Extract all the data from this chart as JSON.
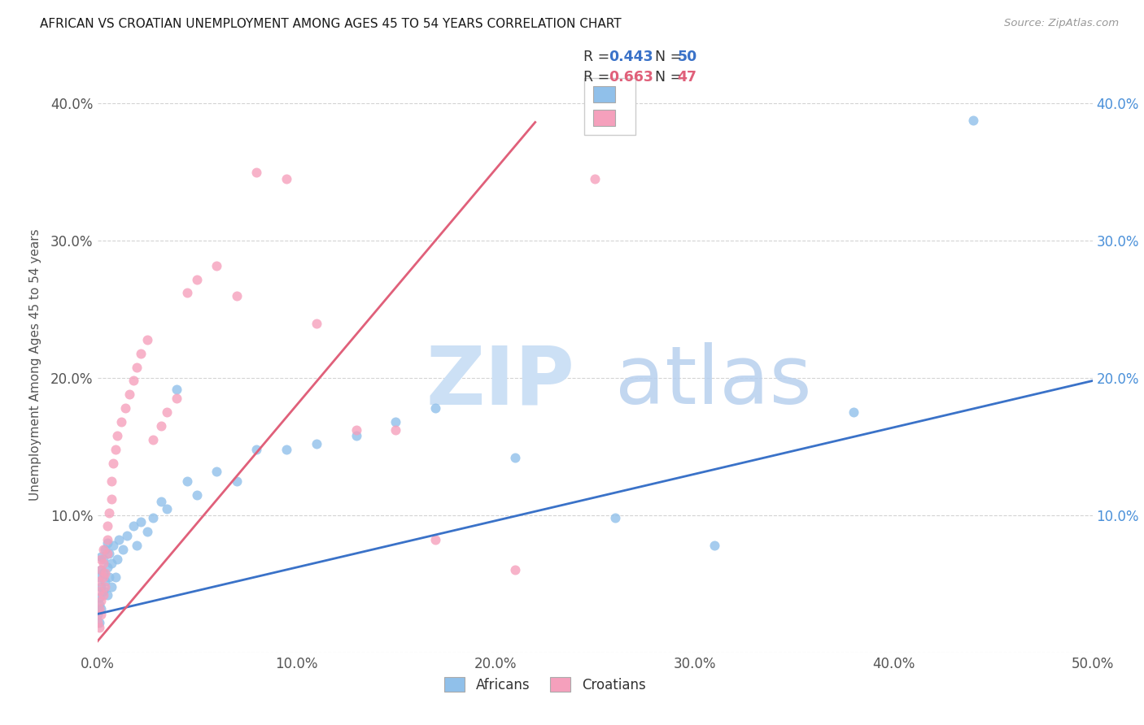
{
  "title": "AFRICAN VS CROATIAN UNEMPLOYMENT AMONG AGES 45 TO 54 YEARS CORRELATION CHART",
  "source": "Source: ZipAtlas.com",
  "ylabel": "Unemployment Among Ages 45 to 54 years",
  "xlim": [
    0.0,
    0.5
  ],
  "ylim": [
    0.0,
    0.42
  ],
  "xtick_vals": [
    0.0,
    0.1,
    0.2,
    0.3,
    0.4,
    0.5
  ],
  "ytick_vals": [
    0.0,
    0.1,
    0.2,
    0.3,
    0.4
  ],
  "xticklabels": [
    "0.0%",
    "10.0%",
    "20.0%",
    "30.0%",
    "40.0%",
    "50.0%"
  ],
  "yticklabels": [
    "",
    "10.0%",
    "20.0%",
    "30.0%",
    "40.0%"
  ],
  "african_color": "#90c0ea",
  "croatian_color": "#f5a0bc",
  "african_line_color": "#3a72c8",
  "croatian_line_color": "#e0607a",
  "watermark_color1": "#cce0f5",
  "watermark_color2": "#b8d0ee",
  "background_color": "#ffffff",
  "grid_color": "#d0d0d0",
  "africans_x": [
    0.0,
    0.001,
    0.001,
    0.001,
    0.001,
    0.002,
    0.002,
    0.002,
    0.002,
    0.003,
    0.003,
    0.003,
    0.004,
    0.004,
    0.005,
    0.005,
    0.005,
    0.006,
    0.006,
    0.007,
    0.007,
    0.008,
    0.009,
    0.01,
    0.011,
    0.013,
    0.015,
    0.018,
    0.02,
    0.022,
    0.025,
    0.028,
    0.032,
    0.035,
    0.04,
    0.045,
    0.05,
    0.06,
    0.07,
    0.08,
    0.095,
    0.11,
    0.13,
    0.15,
    0.17,
    0.21,
    0.26,
    0.31,
    0.38,
    0.44
  ],
  "africans_y": [
    0.028,
    0.035,
    0.022,
    0.04,
    0.055,
    0.032,
    0.048,
    0.06,
    0.07,
    0.045,
    0.058,
    0.068,
    0.052,
    0.075,
    0.042,
    0.062,
    0.08,
    0.055,
    0.072,
    0.048,
    0.065,
    0.078,
    0.055,
    0.068,
    0.082,
    0.075,
    0.085,
    0.092,
    0.078,
    0.095,
    0.088,
    0.098,
    0.11,
    0.105,
    0.192,
    0.125,
    0.115,
    0.132,
    0.125,
    0.148,
    0.148,
    0.152,
    0.158,
    0.168,
    0.178,
    0.142,
    0.098,
    0.078,
    0.175,
    0.388
  ],
  "croatians_x": [
    0.0,
    0.001,
    0.001,
    0.001,
    0.001,
    0.002,
    0.002,
    0.002,
    0.002,
    0.003,
    0.003,
    0.003,
    0.003,
    0.004,
    0.004,
    0.005,
    0.005,
    0.005,
    0.006,
    0.007,
    0.007,
    0.008,
    0.009,
    0.01,
    0.012,
    0.014,
    0.016,
    0.018,
    0.02,
    0.022,
    0.025,
    0.028,
    0.032,
    0.035,
    0.04,
    0.045,
    0.05,
    0.06,
    0.07,
    0.08,
    0.095,
    0.11,
    0.13,
    0.15,
    0.17,
    0.21,
    0.25
  ],
  "croatians_y": [
    0.022,
    0.032,
    0.018,
    0.045,
    0.052,
    0.028,
    0.038,
    0.06,
    0.068,
    0.042,
    0.055,
    0.065,
    0.075,
    0.048,
    0.058,
    0.072,
    0.082,
    0.092,
    0.102,
    0.112,
    0.125,
    0.138,
    0.148,
    0.158,
    0.168,
    0.178,
    0.188,
    0.198,
    0.208,
    0.218,
    0.228,
    0.155,
    0.165,
    0.175,
    0.185,
    0.262,
    0.272,
    0.282,
    0.26,
    0.35,
    0.345,
    0.24,
    0.162,
    0.162,
    0.082,
    0.06,
    0.345
  ]
}
